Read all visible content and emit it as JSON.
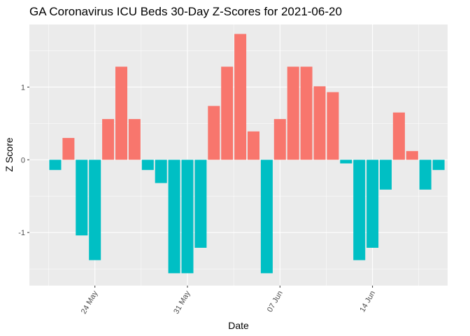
{
  "chart_data": {
    "type": "bar",
    "title": "GA Coronavirus ICU Beds 30-Day Z-Scores for 2021-06-20",
    "x_label": "Date",
    "y_label": "Z Score",
    "categories": [
      null,
      null,
      null,
      "24 May",
      null,
      null,
      null,
      null,
      null,
      null,
      "31 May",
      null,
      null,
      null,
      null,
      null,
      null,
      "07 Jun",
      null,
      null,
      null,
      null,
      null,
      null,
      "14 Jun",
      null,
      null,
      null,
      null,
      null
    ],
    "values": [
      -0.14,
      0.3,
      -1.04,
      -1.38,
      0.56,
      1.28,
      0.56,
      -0.14,
      -0.32,
      -1.56,
      -1.56,
      -1.21,
      0.74,
      1.28,
      1.73,
      0.39,
      -1.56,
      0.56,
      1.28,
      1.28,
      1.01,
      0.93,
      -0.05,
      -1.38,
      -1.21,
      -0.41,
      0.65,
      0.12,
      -0.41,
      -0.14
    ],
    "colors": {
      "positive": "#F8766D",
      "negative": "#00BFC4"
    },
    "ylim": [
      -1.73,
      1.86
    ],
    "yticks": [
      -1,
      0,
      1
    ],
    "grid": true
  }
}
